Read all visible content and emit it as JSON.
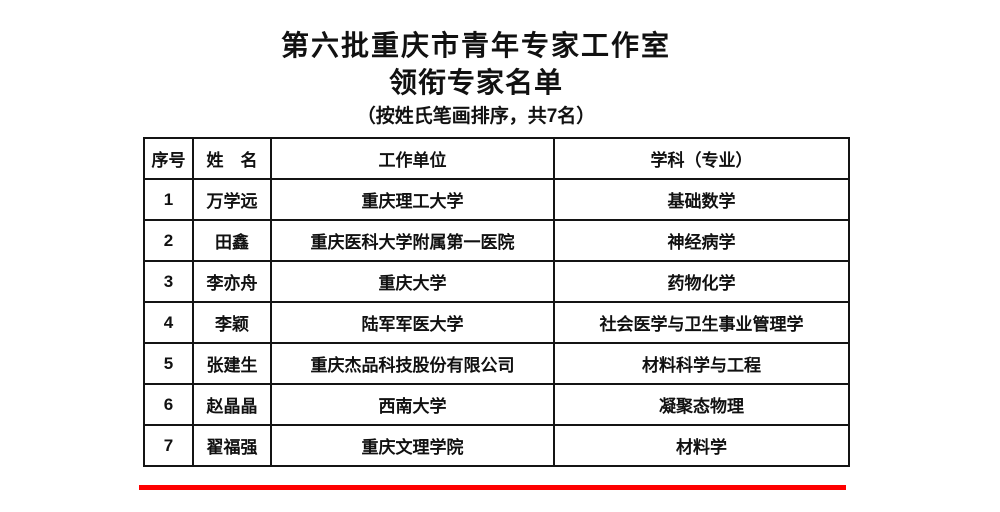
{
  "document": {
    "title_line1": "第六批重庆市青年专家工作室",
    "title_line2": "领衔专家名单",
    "subtitle": "（按姓氏笔画排序，共7名）"
  },
  "table": {
    "headers": {
      "index": "序号",
      "name": "姓　名",
      "unit": "工作单位",
      "major": "学科（专业）"
    },
    "rows": [
      {
        "index": "1",
        "name": "万学远",
        "unit": "重庆理工大学",
        "major": "基础数学"
      },
      {
        "index": "2",
        "name": "田鑫",
        "unit": "重庆医科大学附属第一医院",
        "major": "神经病学"
      },
      {
        "index": "3",
        "name": "李亦舟",
        "unit": "重庆大学",
        "major": "药物化学"
      },
      {
        "index": "4",
        "name": "李颖",
        "unit": "陆军军医大学",
        "major": "社会医学与卫生事业管理学"
      },
      {
        "index": "5",
        "name": "张建生",
        "unit": "重庆杰品科技股份有限公司",
        "major": "材料科学与工程"
      },
      {
        "index": "6",
        "name": "赵晶晶",
        "unit": "西南大学",
        "major": "凝聚态物理"
      },
      {
        "index": "7",
        "name": "翟福强",
        "unit": "重庆文理学院",
        "major": "材料学"
      }
    ]
  },
  "colors": {
    "underline_red": "#fe0000",
    "border_black": "#141414",
    "text": "#111111",
    "background": "#ffffff"
  }
}
